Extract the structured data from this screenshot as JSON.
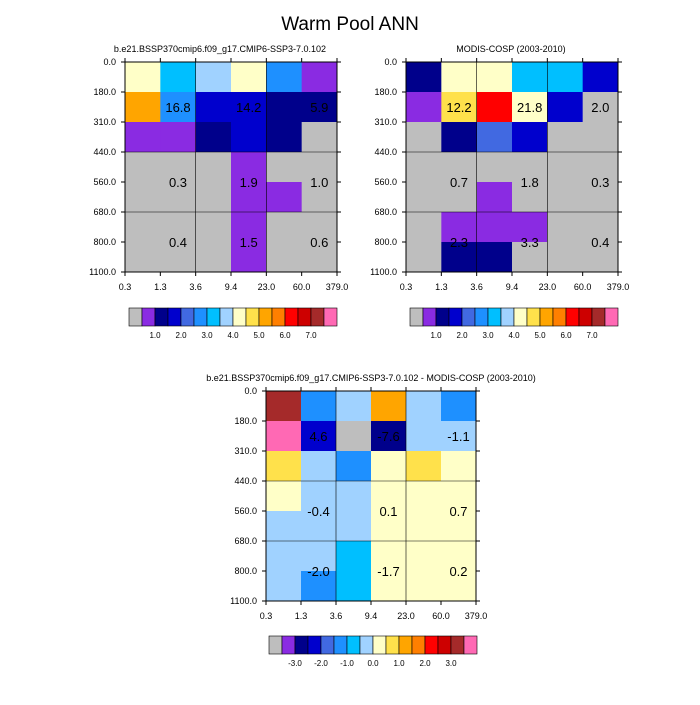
{
  "figure": {
    "title": "Warm Pool ANN"
  },
  "palettes": {
    "abs": [
      "#bebebe",
      "#8a2be2",
      "#00008b",
      "#0000cd",
      "#4169e1",
      "#1e90ff",
      "#00bfff",
      "#a0d2ff",
      "#ffffc8",
      "#ffe14b",
      "#ffa500",
      "#ff7f00",
      "#ff0000",
      "#cd0000",
      "#a52a2a",
      "#ff69b4"
    ],
    "diff": [
      "#bebebe",
      "#8a2be2",
      "#00008b",
      "#0000cd",
      "#4169e1",
      "#1e90ff",
      "#00bfff",
      "#a0d2ff",
      "#ffffc8",
      "#ffe14b",
      "#ffa500",
      "#ff7f00",
      "#ff0000",
      "#cd0000",
      "#a52a2a",
      "#ff69b4"
    ]
  },
  "chart_data": [
    {
      "type": "heatmap",
      "id": "model",
      "title": "b.e21.BSSP370cmip6.f09_g17.CMIP6-SSP3-7.0.102",
      "x_ticks": [
        "0.3",
        "1.3",
        "3.6",
        "9.4",
        "23.0",
        "60.0",
        "379.0"
      ],
      "y_ticks": [
        "0.0",
        "180.0",
        "310.0",
        "440.0",
        "560.0",
        "680.0",
        "800.0",
        "1100.0"
      ],
      "palette": "abs",
      "cells": [
        [
          8,
          6,
          7,
          8,
          5,
          1
        ],
        [
          10,
          5,
          3,
          3,
          2,
          2
        ],
        [
          1,
          1,
          2,
          3,
          2,
          0
        ],
        [
          0,
          0,
          0,
          1,
          0,
          0
        ],
        [
          0,
          0,
          0,
          1,
          1,
          0
        ],
        [
          0,
          0,
          0,
          1,
          0,
          0
        ],
        [
          0,
          0,
          0,
          1,
          0,
          0
        ]
      ],
      "labels": [
        {
          "text": "16.8",
          "xi": 1,
          "yi": 1.5
        },
        {
          "text": "14.2",
          "xi": 3,
          "yi": 1.5
        },
        {
          "text": "5.9",
          "xi": 5,
          "yi": 1.5
        },
        {
          "text": "0.3",
          "xi": 1,
          "yi": 4
        },
        {
          "text": "1.9",
          "xi": 3,
          "yi": 4
        },
        {
          "text": "1.0",
          "xi": 5,
          "yi": 4
        },
        {
          "text": "0.4",
          "xi": 1,
          "yi": 6
        },
        {
          "text": "1.5",
          "xi": 3,
          "yi": 6
        },
        {
          "text": "0.6",
          "xi": 5,
          "yi": 6
        }
      ],
      "colorbar_labels": [
        "1.0",
        "2.0",
        "3.0",
        "4.0",
        "5.0",
        "6.0",
        "7.0"
      ]
    },
    {
      "type": "heatmap",
      "id": "obs",
      "title": "MODIS-COSP (2003-2010)",
      "x_ticks": [
        "0.3",
        "1.3",
        "3.6",
        "9.4",
        "23.0",
        "60.0",
        "379.0"
      ],
      "y_ticks": [
        "0.0",
        "180.0",
        "310.0",
        "440.0",
        "560.0",
        "680.0",
        "800.0",
        "1100.0"
      ],
      "palette": "abs",
      "cells": [
        [
          2,
          8,
          8,
          6,
          6,
          3
        ],
        [
          1,
          9,
          12,
          8,
          3,
          0
        ],
        [
          0,
          2,
          4,
          3,
          0,
          0
        ],
        [
          0,
          0,
          0,
          0,
          0,
          0
        ],
        [
          0,
          0,
          1,
          0,
          0,
          0
        ],
        [
          0,
          1,
          1,
          1,
          0,
          0
        ],
        [
          0,
          2,
          2,
          0,
          0,
          0
        ]
      ],
      "labels": [
        {
          "text": "12.2",
          "xi": 1,
          "yi": 1.5
        },
        {
          "text": "21.8",
          "xi": 3,
          "yi": 1.5
        },
        {
          "text": "2.0",
          "xi": 5,
          "yi": 1.5
        },
        {
          "text": "0.7",
          "xi": 1,
          "yi": 4
        },
        {
          "text": "1.8",
          "xi": 3,
          "yi": 4
        },
        {
          "text": "0.3",
          "xi": 5,
          "yi": 4
        },
        {
          "text": "2.3",
          "xi": 1,
          "yi": 6
        },
        {
          "text": "3.3",
          "xi": 3,
          "yi": 6
        },
        {
          "text": "0.4",
          "xi": 5,
          "yi": 6
        }
      ],
      "colorbar_labels": [
        "1.0",
        "2.0",
        "3.0",
        "4.0",
        "5.0",
        "6.0",
        "7.0"
      ]
    },
    {
      "type": "heatmap",
      "id": "diff",
      "title": "b.e21.BSSP370cmip6.f09_g17.CMIP6-SSP3-7.0.102 - MODIS-COSP (2003-2010)",
      "x_ticks": [
        "0.3",
        "1.3",
        "3.6",
        "9.4",
        "23.0",
        "60.0",
        "379.0"
      ],
      "y_ticks": [
        "0.0",
        "180.0",
        "310.0",
        "440.0",
        "560.0",
        "680.0",
        "800.0",
        "1100.0"
      ],
      "palette": "diff",
      "cells": [
        [
          14,
          5,
          7,
          10,
          7,
          5
        ],
        [
          15,
          3,
          0,
          2,
          7,
          7
        ],
        [
          9,
          7,
          5,
          8,
          9,
          8
        ],
        [
          8,
          7,
          7,
          8,
          8,
          8
        ],
        [
          7,
          7,
          7,
          8,
          8,
          8
        ],
        [
          7,
          7,
          6,
          8,
          8,
          8
        ],
        [
          7,
          5,
          6,
          8,
          8,
          8
        ]
      ],
      "labels": [
        {
          "text": "4.6",
          "xi": 1,
          "yi": 1.5
        },
        {
          "text": "-7.6",
          "xi": 3,
          "yi": 1.5
        },
        {
          "text": "-1.1",
          "xi": 5,
          "yi": 1.5
        },
        {
          "text": "-0.4",
          "xi": 1,
          "yi": 4
        },
        {
          "text": "0.1",
          "xi": 3,
          "yi": 4
        },
        {
          "text": "0.7",
          "xi": 5,
          "yi": 4
        },
        {
          "text": "-2.0",
          "xi": 1,
          "yi": 6
        },
        {
          "text": "-1.7",
          "xi": 3,
          "yi": 6
        },
        {
          "text": "0.2",
          "xi": 5,
          "yi": 6
        }
      ],
      "colorbar_labels": [
        "-3.0",
        "-2.0",
        "-1.0",
        "0.0",
        "1.0",
        "2.0",
        "3.0"
      ]
    }
  ]
}
